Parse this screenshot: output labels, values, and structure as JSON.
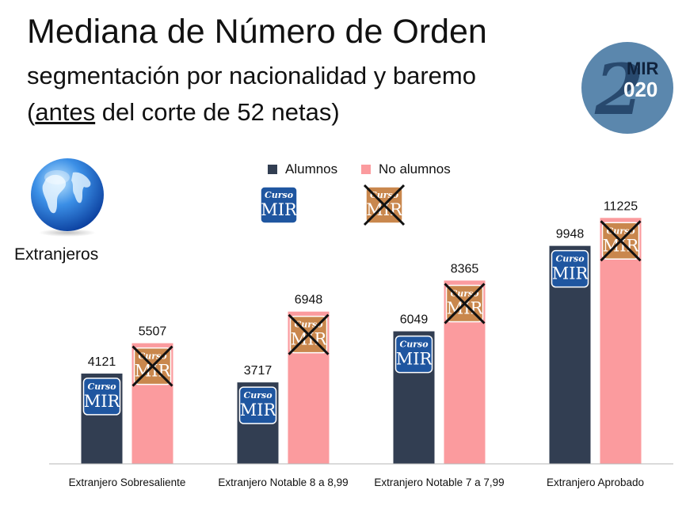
{
  "title": "Mediana de Número de Orden",
  "subtitle": "segmentación por nacionalidad y baremo",
  "note": {
    "open": "(",
    "underlined": "antes",
    "rest": " del corte de 52 netas)"
  },
  "badge": {
    "numeral": "2",
    "top": "MIR",
    "bottom": "020"
  },
  "region_label": "Extranjeros",
  "logo": {
    "script": "Curso",
    "brand": "MIR"
  },
  "colors": {
    "alumnos": "#323e52",
    "no_alumnos": "#fb9b9e",
    "badge": "#5b87ad",
    "logo": "#1f56a0",
    "logo_crossed": "#c9874d"
  },
  "chart_data": {
    "type": "bar",
    "categories": [
      "Extranjero Sobresaliente",
      "Extranjero Notable 8 a 8,99",
      "Extranjero Notable 7 a 7,99",
      "Extranjero Aprobado"
    ],
    "series": [
      {
        "name": "Alumnos",
        "values": [
          4121,
          3717,
          6049,
          9948
        ]
      },
      {
        "name": "No alumnos",
        "values": [
          5507,
          6948,
          8365,
          11225
        ]
      }
    ],
    "ylim": [
      0,
      12500
    ],
    "grid": false,
    "legend": "top-center"
  }
}
